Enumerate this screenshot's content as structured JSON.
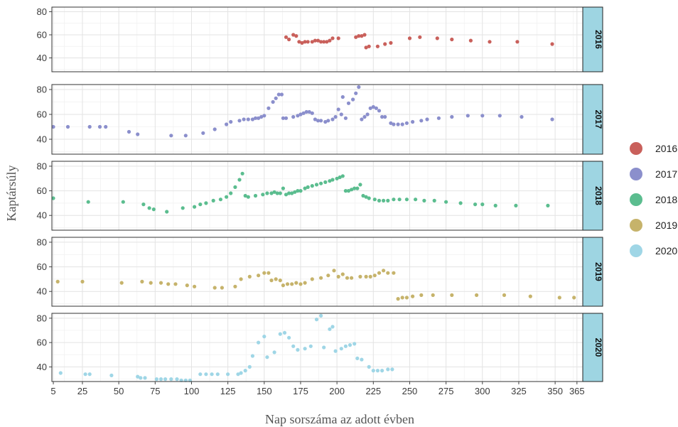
{
  "chart_data": {
    "type": "scatter",
    "xlabel": "Nap sorszáma az adott évben",
    "ylabel": "Kaptársúly",
    "xlim": [
      4,
      369
    ],
    "ylim": [
      28,
      84
    ],
    "x_ticks": [
      5,
      25,
      50,
      75,
      100,
      125,
      150,
      175,
      200,
      225,
      250,
      275,
      300,
      325,
      350,
      365
    ],
    "y_ticks": [
      40,
      60,
      80
    ],
    "grid": true,
    "facets": "rows by year, strip labels on right",
    "legend_position": "right",
    "series": [
      {
        "name": "2016",
        "color": "#c9605b",
        "points": [
          [
            165,
            58
          ],
          [
            167,
            56
          ],
          [
            170,
            60
          ],
          [
            172,
            59
          ],
          [
            174,
            54
          ],
          [
            176,
            53
          ],
          [
            178,
            54
          ],
          [
            180,
            54
          ],
          [
            183,
            54
          ],
          [
            185,
            55
          ],
          [
            187,
            55
          ],
          [
            189,
            54
          ],
          [
            191,
            54
          ],
          [
            193,
            54
          ],
          [
            195,
            55
          ],
          [
            197,
            57
          ],
          [
            201,
            57
          ],
          [
            213,
            58
          ],
          [
            215,
            59
          ],
          [
            217,
            59
          ],
          [
            219,
            60
          ],
          [
            220,
            49
          ],
          [
            222,
            50
          ],
          [
            228,
            50
          ],
          [
            233,
            52
          ],
          [
            237,
            53
          ],
          [
            250,
            57
          ],
          [
            257,
            58
          ],
          [
            269,
            57
          ],
          [
            279,
            56
          ],
          [
            292,
            55
          ],
          [
            305,
            54
          ],
          [
            324,
            54
          ],
          [
            348,
            52
          ]
        ]
      },
      {
        "name": "2017",
        "color": "#8b8fcc",
        "points": [
          [
            5,
            50
          ],
          [
            15,
            50
          ],
          [
            30,
            50
          ],
          [
            37,
            50
          ],
          [
            41,
            50
          ],
          [
            57,
            46
          ],
          [
            63,
            44
          ],
          [
            86,
            43
          ],
          [
            96,
            43
          ],
          [
            108,
            45
          ],
          [
            116,
            48
          ],
          [
            124,
            52
          ],
          [
            127,
            54
          ],
          [
            133,
            55
          ],
          [
            136,
            56
          ],
          [
            139,
            56
          ],
          [
            142,
            56
          ],
          [
            144,
            57
          ],
          [
            146,
            57
          ],
          [
            148,
            58
          ],
          [
            150,
            59
          ],
          [
            153,
            65
          ],
          [
            156,
            70
          ],
          [
            158,
            73
          ],
          [
            160,
            76
          ],
          [
            162,
            76
          ],
          [
            163,
            57
          ],
          [
            165,
            57
          ],
          [
            170,
            58
          ],
          [
            173,
            59
          ],
          [
            175,
            60
          ],
          [
            177,
            61
          ],
          [
            179,
            62
          ],
          [
            181,
            62
          ],
          [
            183,
            61
          ],
          [
            185,
            56
          ],
          [
            187,
            55
          ],
          [
            189,
            55
          ],
          [
            192,
            54
          ],
          [
            194,
            55
          ],
          [
            197,
            56
          ],
          [
            199,
            58
          ],
          [
            201,
            64
          ],
          [
            203,
            60
          ],
          [
            204,
            74
          ],
          [
            206,
            57
          ],
          [
            208,
            69
          ],
          [
            211,
            72
          ],
          [
            213,
            77
          ],
          [
            215,
            82
          ],
          [
            217,
            56
          ],
          [
            219,
            58
          ],
          [
            221,
            60
          ],
          [
            223,
            65
          ],
          [
            225,
            66
          ],
          [
            227,
            65
          ],
          [
            229,
            63
          ],
          [
            231,
            58
          ],
          [
            233,
            58
          ],
          [
            237,
            53
          ],
          [
            239,
            52
          ],
          [
            242,
            52
          ],
          [
            245,
            52
          ],
          [
            248,
            53
          ],
          [
            252,
            54
          ],
          [
            258,
            55
          ],
          [
            262,
            56
          ],
          [
            270,
            57
          ],
          [
            279,
            58
          ],
          [
            290,
            59
          ],
          [
            300,
            59
          ],
          [
            312,
            59
          ],
          [
            327,
            58
          ],
          [
            348,
            56
          ]
        ]
      },
      {
        "name": "2018",
        "color": "#5bbd8f",
        "points": [
          [
            5,
            54
          ],
          [
            29,
            51
          ],
          [
            53,
            51
          ],
          [
            67,
            49
          ],
          [
            71,
            46
          ],
          [
            74,
            45
          ],
          [
            83,
            43
          ],
          [
            94,
            46
          ],
          [
            102,
            47
          ],
          [
            106,
            49
          ],
          [
            110,
            50
          ],
          [
            115,
            52
          ],
          [
            120,
            53
          ],
          [
            124,
            55
          ],
          [
            127,
            58
          ],
          [
            130,
            63
          ],
          [
            133,
            69
          ],
          [
            135,
            74
          ],
          [
            137,
            56
          ],
          [
            139,
            55
          ],
          [
            144,
            56
          ],
          [
            149,
            57
          ],
          [
            152,
            58
          ],
          [
            155,
            58
          ],
          [
            157,
            59
          ],
          [
            159,
            58
          ],
          [
            161,
            58
          ],
          [
            163,
            62
          ],
          [
            165,
            57
          ],
          [
            167,
            58
          ],
          [
            169,
            58
          ],
          [
            171,
            59
          ],
          [
            173,
            60
          ],
          [
            175,
            60
          ],
          [
            178,
            62
          ],
          [
            180,
            63
          ],
          [
            183,
            64
          ],
          [
            186,
            65
          ],
          [
            189,
            66
          ],
          [
            192,
            67
          ],
          [
            195,
            68
          ],
          [
            197,
            69
          ],
          [
            200,
            70
          ],
          [
            202,
            71
          ],
          [
            204,
            72
          ],
          [
            206,
            60
          ],
          [
            208,
            60
          ],
          [
            210,
            61
          ],
          [
            212,
            62
          ],
          [
            214,
            62
          ],
          [
            216,
            65
          ],
          [
            218,
            56
          ],
          [
            220,
            55
          ],
          [
            222,
            54
          ],
          [
            226,
            53
          ],
          [
            229,
            52
          ],
          [
            232,
            52
          ],
          [
            235,
            52
          ],
          [
            239,
            53
          ],
          [
            243,
            53
          ],
          [
            248,
            53
          ],
          [
            254,
            53
          ],
          [
            260,
            52
          ],
          [
            267,
            52
          ],
          [
            275,
            51
          ],
          [
            285,
            50
          ],
          [
            295,
            49
          ],
          [
            300,
            49
          ],
          [
            309,
            48
          ],
          [
            323,
            48
          ],
          [
            345,
            48
          ]
        ]
      },
      {
        "name": "2019",
        "color": "#c6b36b",
        "points": [
          [
            8,
            48
          ],
          [
            25,
            48
          ],
          [
            52,
            47
          ],
          [
            66,
            48
          ],
          [
            72,
            47
          ],
          [
            79,
            47
          ],
          [
            84,
            46
          ],
          [
            89,
            46
          ],
          [
            97,
            45
          ],
          [
            102,
            44
          ],
          [
            116,
            43
          ],
          [
            121,
            43
          ],
          [
            130,
            44
          ],
          [
            134,
            50
          ],
          [
            140,
            52
          ],
          [
            146,
            53
          ],
          [
            150,
            55
          ],
          [
            153,
            55
          ],
          [
            155,
            49
          ],
          [
            158,
            50
          ],
          [
            161,
            49
          ],
          [
            163,
            45
          ],
          [
            166,
            46
          ],
          [
            169,
            46
          ],
          [
            172,
            47
          ],
          [
            175,
            46
          ],
          [
            178,
            47
          ],
          [
            183,
            50
          ],
          [
            189,
            51
          ],
          [
            194,
            53
          ],
          [
            198,
            57
          ],
          [
            201,
            52
          ],
          [
            204,
            54
          ],
          [
            207,
            51
          ],
          [
            210,
            51
          ],
          [
            216,
            52
          ],
          [
            220,
            52
          ],
          [
            223,
            52
          ],
          [
            226,
            53
          ],
          [
            229,
            55
          ],
          [
            232,
            57
          ],
          [
            235,
            55
          ],
          [
            239,
            55
          ],
          [
            242,
            34
          ],
          [
            245,
            35
          ],
          [
            248,
            35
          ],
          [
            252,
            36
          ],
          [
            258,
            37
          ],
          [
            266,
            37
          ],
          [
            279,
            37
          ],
          [
            296,
            37
          ],
          [
            315,
            37
          ],
          [
            333,
            36
          ],
          [
            353,
            35
          ],
          [
            363,
            35
          ]
        ]
      },
      {
        "name": "2020",
        "color": "#9fd6e6",
        "points": [
          [
            10,
            35
          ],
          [
            27,
            34
          ],
          [
            30,
            34
          ],
          [
            45,
            33
          ],
          [
            63,
            32
          ],
          [
            65,
            31
          ],
          [
            68,
            31
          ],
          [
            76,
            30
          ],
          [
            79,
            30
          ],
          [
            82,
            30
          ],
          [
            86,
            30
          ],
          [
            90,
            30
          ],
          [
            93,
            29
          ],
          [
            96,
            29
          ],
          [
            99,
            29
          ],
          [
            106,
            34
          ],
          [
            110,
            34
          ],
          [
            114,
            34
          ],
          [
            118,
            34
          ],
          [
            125,
            34
          ],
          [
            132,
            34
          ],
          [
            134,
            35
          ],
          [
            137,
            37
          ],
          [
            140,
            40
          ],
          [
            142,
            49
          ],
          [
            146,
            60
          ],
          [
            150,
            65
          ],
          [
            152,
            48
          ],
          [
            157,
            52
          ],
          [
            161,
            67
          ],
          [
            164,
            68
          ],
          [
            167,
            64
          ],
          [
            170,
            57
          ],
          [
            173,
            54
          ],
          [
            178,
            55
          ],
          [
            182,
            57
          ],
          [
            186,
            79
          ],
          [
            189,
            82
          ],
          [
            191,
            56
          ],
          [
            195,
            71
          ],
          [
            197,
            73
          ],
          [
            199,
            53
          ],
          [
            203,
            55
          ],
          [
            206,
            57
          ],
          [
            209,
            58
          ],
          [
            212,
            59
          ],
          [
            214,
            47
          ],
          [
            217,
            46
          ],
          [
            222,
            40
          ],
          [
            225,
            37
          ],
          [
            228,
            37
          ],
          [
            231,
            37
          ],
          [
            235,
            38
          ],
          [
            238,
            38
          ]
        ]
      }
    ]
  }
}
